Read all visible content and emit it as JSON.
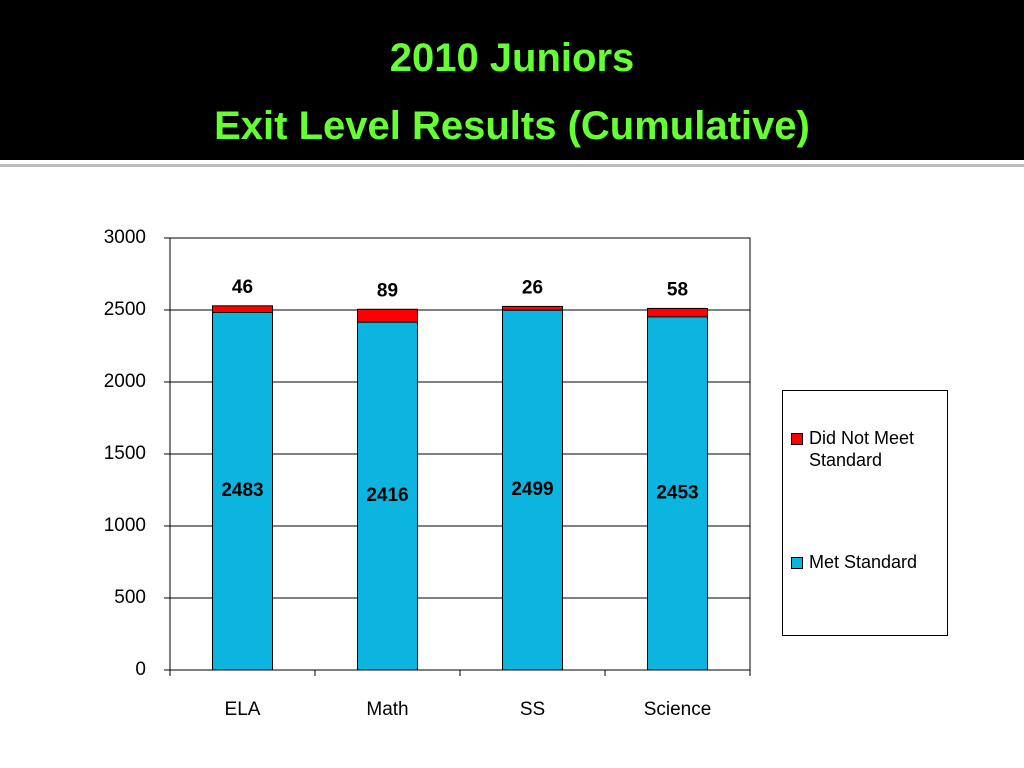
{
  "chart_data": {
    "type": "stacked_bar",
    "title": [
      "2010 Juniors",
      "Exit Level Results (Cumulative)"
    ],
    "categories": [
      "ELA",
      "Math",
      "SS",
      "Science"
    ],
    "series": [
      {
        "name": "Met Standard",
        "color": "#0bb5e0",
        "values": [
          2483,
          2416,
          2499,
          2453
        ]
      },
      {
        "name": "Did Not Meet Standard",
        "color": "#ff0000",
        "values": [
          46,
          89,
          26,
          58
        ]
      }
    ],
    "ylim": [
      0,
      3000
    ],
    "yticks": [
      0,
      500,
      1000,
      1500,
      2000,
      2500,
      3000
    ],
    "grid": true,
    "legend": "right"
  }
}
